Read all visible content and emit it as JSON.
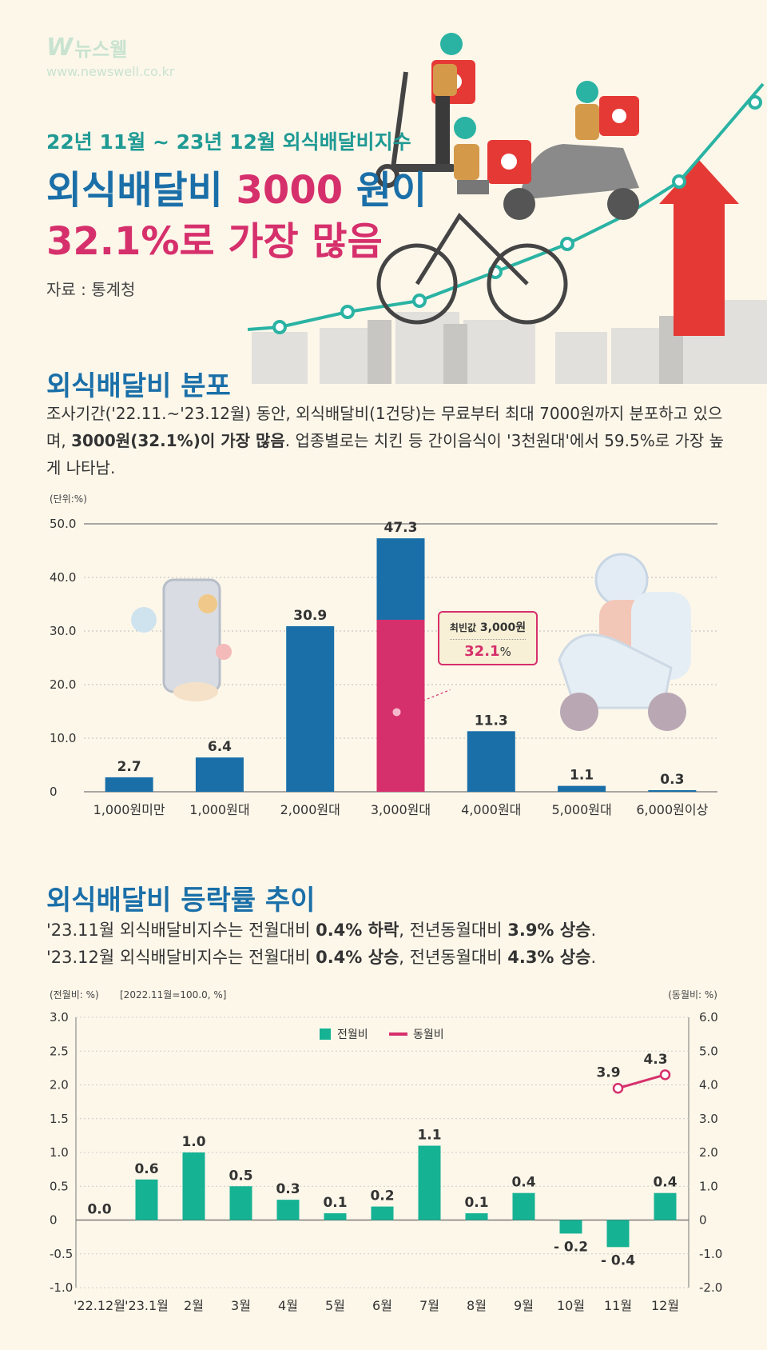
{
  "logo": {
    "mark": "W",
    "name": "뉴스웰",
    "url": "www.newswell.co.kr"
  },
  "hero": {
    "subtitle": "22년 11월 ~ 23년 12월 외식배달비지수",
    "line1_a": "외식배달비 ",
    "line1_b": "3000",
    "line1_c": " 원이",
    "line2_a": "32.1%",
    "line2_b": "로 가장 많음",
    "source": "자료 : 통계청"
  },
  "section1": {
    "title": "외식배달비 분포",
    "desc_a": "조사기간('22.11.~'23.12월) 동안, 외식배달비(1건당)는 무료부터 최대 7000원까지 분포하고 있으며, ",
    "desc_bold": "3000원(32.1%)이 가장 많음",
    "desc_b": ". 업종별로는 치킨 등 간이음식이 '3천원대'에서 59.5%로 가장 높게 나타남.",
    "callout_label": "최빈값",
    "callout_value": "3,000원",
    "callout_pct": "32.1",
    "callout_pct_unit": "%"
  },
  "section2": {
    "title": "외식배달비 등락률 추이",
    "line1_a": "'23.11월 외식배달비지수는 전월대비 ",
    "line1_b": "0.4% 하락",
    "line1_c": ", 전년동월대비 ",
    "line1_d": "3.9% 상승",
    "line1_e": ".",
    "line2_a": "'23.12월 외식배달비지수는 전월대비 ",
    "line2_b": "0.4% 상승",
    "line2_c": ", 전년동월대비 ",
    "line2_d": "4.3% 상승",
    "line2_e": "."
  },
  "chart_data": [
    {
      "type": "bar",
      "unit": "(단위:%)",
      "categories": [
        "1,000원미만",
        "1,000원대",
        "2,000원대",
        "3,000원대",
        "4,000원대",
        "5,000원대",
        "6,000원이상"
      ],
      "values": [
        2.7,
        6.4,
        30.9,
        47.3,
        11.3,
        1.1,
        0.3
      ],
      "highlight": {
        "category": "3,000원대",
        "value": 32.1,
        "color": "#d6306c"
      },
      "yticks": [
        "0",
        "10.0",
        "20.0",
        "30.0",
        "40.0",
        "50.0"
      ],
      "ylim": [
        0,
        50
      ],
      "color": "#1a6fa8"
    },
    {
      "type": "bar",
      "left_unit": "(전월비: %)",
      "index_note": "[2022.11월=100.0, %]",
      "right_unit": "(동월비: %)",
      "categories": [
        "'22.12월",
        "'23.1월",
        "2월",
        "3월",
        "4월",
        "5월",
        "6월",
        "7월",
        "8월",
        "9월",
        "10월",
        "11월",
        "12월"
      ],
      "series": [
        {
          "name": "전월비",
          "type": "bar",
          "color": "#16b294",
          "values": [
            0.0,
            0.6,
            1.0,
            0.5,
            0.3,
            0.1,
            0.2,
            1.1,
            0.1,
            0.4,
            -0.2,
            -0.4,
            0.4
          ],
          "labels": [
            "0.0",
            "0.6",
            "1.0",
            "0.5",
            "0.3",
            "0.1",
            "0.2",
            "1.1",
            "0.1",
            "0.4",
            "- 0.2",
            "- 0.4",
            "0.4"
          ]
        },
        {
          "name": "동월비",
          "type": "line",
          "axis": "right",
          "color": "#d6306c",
          "points": [
            {
              "category": "11월",
              "value": 3.9
            },
            {
              "category": "12월",
              "value": 4.3
            }
          ]
        }
      ],
      "yticks_left": [
        "-1.0",
        "-0.5",
        "0",
        "0.5",
        "1.0",
        "1.5",
        "2.0",
        "2.5",
        "3.0"
      ],
      "ylim_left": [
        -1.0,
        3.0
      ],
      "yticks_right": [
        "-2.0",
        "-1.0",
        "0",
        "1.0",
        "2.0",
        "3.0",
        "4.0",
        "5.0",
        "6.0"
      ],
      "ylim_right": [
        -2.0,
        6.0
      ],
      "legend": "top-center"
    }
  ]
}
